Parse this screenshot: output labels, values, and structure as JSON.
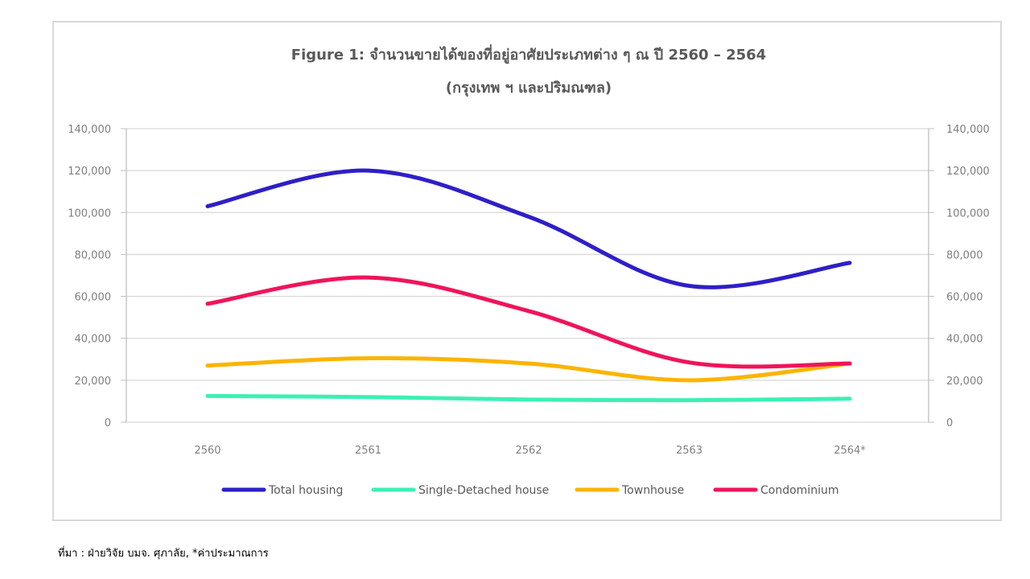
{
  "source_note": "ที่มา : ฝ่ายวิจัย บมจ. ศุภาลัย, *ค่าประมาณการ",
  "chart_data": {
    "type": "line",
    "title": "Figure 1: จำนวนขายได้ของที่อยู่อาศัยประเภทต่าง ๆ ณ ปี 2560 – 2564",
    "subtitle": "(กรุงเทพ ฯ และปริมณฑล)",
    "categories": [
      "2560",
      "2561",
      "2562",
      "2563",
      "2564*"
    ],
    "y_ticks": [
      "0",
      "20,000",
      "40,000",
      "60,000",
      "80,000",
      "100,000",
      "120,000",
      "140,000"
    ],
    "ylim": [
      0,
      140000
    ],
    "secondary_axis": true,
    "grid": true,
    "smooth": true,
    "legend_position": "bottom",
    "series": [
      {
        "name": "Total housing",
        "color": "#2e1fc7",
        "values": [
          103000,
          120000,
          98000,
          65000,
          76000
        ]
      },
      {
        "name": "Single-Detached house",
        "color": "#3cf0b4",
        "values": [
          12500,
          12000,
          10800,
          10500,
          11200
        ]
      },
      {
        "name": "Townhouse",
        "color": "#fbb400",
        "values": [
          27000,
          30500,
          28000,
          20000,
          28000
        ]
      },
      {
        "name": "Condominium",
        "color": "#f0145a",
        "values": [
          56500,
          69000,
          53000,
          28500,
          28000
        ]
      }
    ]
  }
}
